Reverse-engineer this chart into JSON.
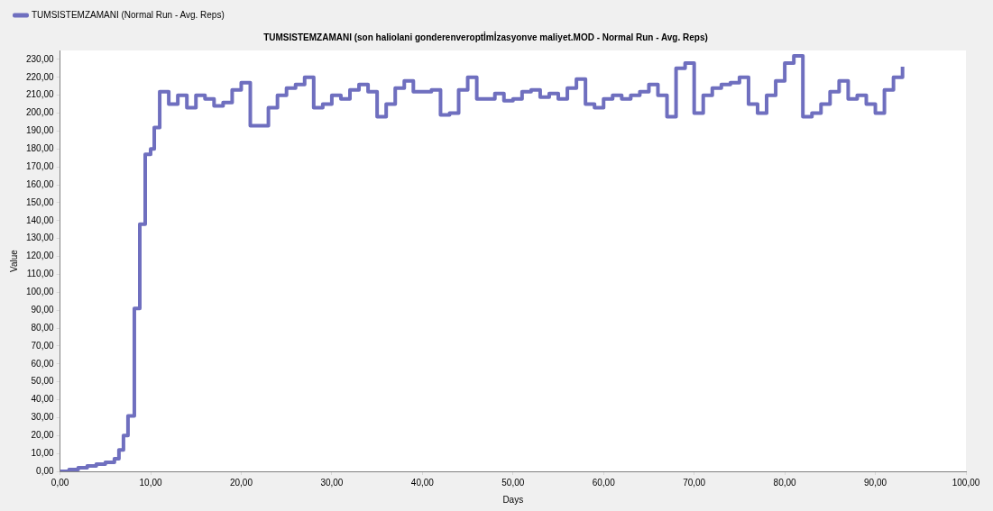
{
  "chart_data": {
    "type": "step",
    "title": "TUMSISTEMZAMANI (son haliolani gonderenveroptİmİzasyonve maliyet.MOD - Normal Run - Avg. Reps)",
    "xlabel": "Days",
    "ylabel": "Value",
    "legend": "top left",
    "grid": false,
    "x": [
      0,
      1,
      2,
      3,
      4,
      5,
      6,
      6.5,
      7,
      7.5,
      8.2,
      8.8,
      9.4,
      10,
      10.4,
      11,
      12,
      13,
      14,
      15,
      16,
      17,
      18,
      19,
      20,
      21,
      22,
      23,
      24,
      25,
      26,
      27,
      28,
      29,
      30,
      31,
      32,
      33,
      34,
      35,
      36,
      37,
      38,
      39,
      40,
      41,
      42,
      43,
      44,
      45,
      46,
      47,
      48,
      49,
      50,
      51,
      52,
      53,
      54,
      55,
      56,
      57,
      58,
      59,
      60,
      61,
      62,
      63,
      64,
      65,
      66,
      67,
      68,
      69,
      70,
      71,
      72,
      73,
      74,
      75,
      76,
      77,
      78,
      79,
      80,
      81,
      82,
      83,
      84,
      85,
      86,
      87,
      88,
      89,
      90,
      91,
      92,
      93
    ],
    "series": [
      {
        "name": "TUMSISTEMZAMANI (Normal Run - Avg. Reps)",
        "color": "#6f6fbf",
        "values": [
          0,
          1,
          2,
          3,
          4,
          5,
          7,
          12,
          20,
          31,
          91,
          138,
          177,
          180,
          192,
          212,
          205,
          210,
          203,
          210,
          208,
          204,
          206,
          213,
          217,
          193,
          193,
          203,
          210,
          214,
          216,
          220,
          203,
          205,
          210,
          208,
          213,
          216,
          212,
          198,
          205,
          214,
          218,
          212,
          212,
          213,
          199,
          200,
          213,
          220,
          208,
          208,
          211,
          207,
          208,
          212,
          213,
          209,
          211,
          208,
          214,
          219,
          205,
          203,
          208,
          210,
          208,
          210,
          212,
          216,
          210,
          198,
          225,
          228,
          200,
          210,
          214,
          216,
          217,
          220,
          205,
          200,
          210,
          218,
          228,
          232,
          198,
          200,
          205,
          212,
          218,
          208,
          210,
          205,
          200,
          213,
          220,
          226
        ]
      }
    ],
    "xlim": [
      0,
      100
    ],
    "ylim": [
      0,
      235
    ],
    "xticks": [
      {
        "value": 0,
        "label": "0,00"
      },
      {
        "value": 10,
        "label": "10,00"
      },
      {
        "value": 20,
        "label": "20,00"
      },
      {
        "value": 30,
        "label": "30,00"
      },
      {
        "value": 40,
        "label": "40,00"
      },
      {
        "value": 50,
        "label": "50,00"
      },
      {
        "value": 60,
        "label": "60,00"
      },
      {
        "value": 70,
        "label": "70,00"
      },
      {
        "value": 80,
        "label": "80,00"
      },
      {
        "value": 90,
        "label": "90,00"
      },
      {
        "value": 100,
        "label": "100,00"
      }
    ],
    "yticks": [
      {
        "value": 0,
        "label": "0,00"
      },
      {
        "value": 10,
        "label": "10,00"
      },
      {
        "value": 20,
        "label": "20,00"
      },
      {
        "value": 30,
        "label": "30,00"
      },
      {
        "value": 40,
        "label": "40,00"
      },
      {
        "value": 50,
        "label": "50,00"
      },
      {
        "value": 60,
        "label": "60,00"
      },
      {
        "value": 70,
        "label": "70,00"
      },
      {
        "value": 80,
        "label": "80,00"
      },
      {
        "value": 90,
        "label": "90,00"
      },
      {
        "value": 100,
        "label": "100,00"
      },
      {
        "value": 110,
        "label": "110,00"
      },
      {
        "value": 120,
        "label": "120,00"
      },
      {
        "value": 130,
        "label": "130,00"
      },
      {
        "value": 140,
        "label": "140,00"
      },
      {
        "value": 150,
        "label": "150,00"
      },
      {
        "value": 160,
        "label": "160,00"
      },
      {
        "value": 170,
        "label": "170,00"
      },
      {
        "value": 180,
        "label": "180,00"
      },
      {
        "value": 190,
        "label": "190,00"
      },
      {
        "value": 200,
        "label": "200,00"
      },
      {
        "value": 210,
        "label": "210,00"
      },
      {
        "value": 220,
        "label": "220,00"
      },
      {
        "value": 230,
        "label": "230,00"
      }
    ]
  }
}
